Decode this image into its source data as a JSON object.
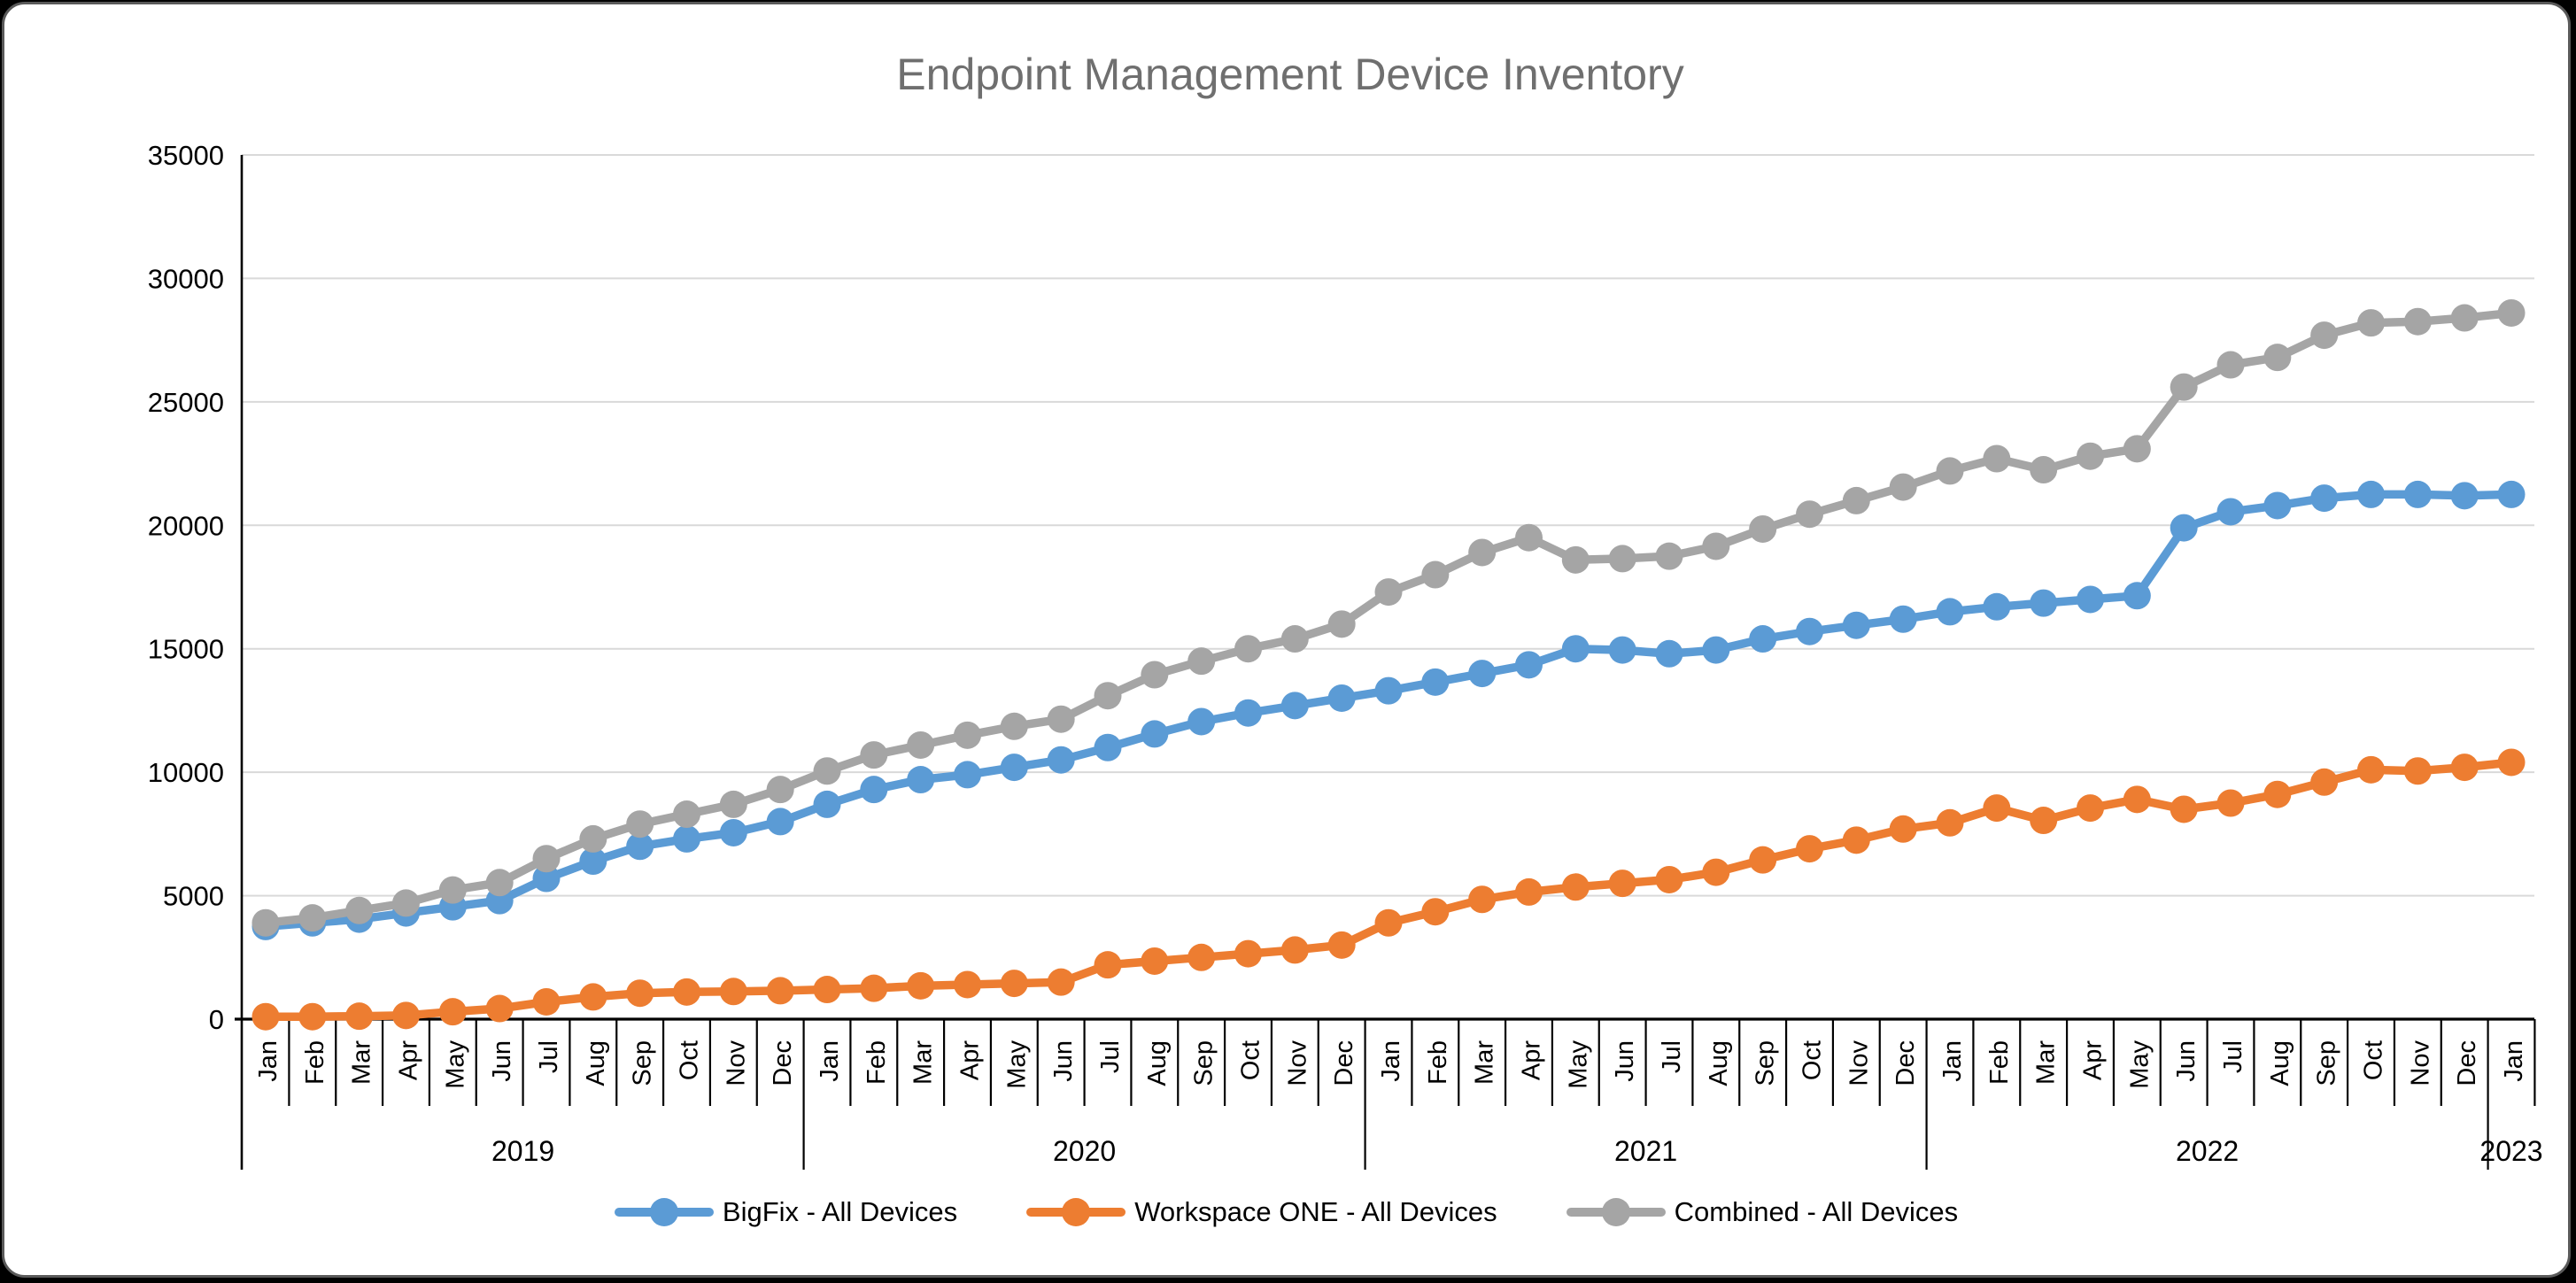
{
  "page": {
    "background": "#000000",
    "card_background": "#ffffff",
    "card_border": "#5a5a5a"
  },
  "chart": {
    "title_color": "#6F6F6F",
    "axis_color": "#000000",
    "grid_color": "#D9D9D9",
    "label_color": "#000000"
  },
  "chart_data": {
    "type": "line",
    "title": "Endpoint Management Device Inventory",
    "xlabel": "",
    "ylabel": "",
    "ylim": [
      0,
      35000
    ],
    "grid": true,
    "legend_position": "bottom",
    "y_ticks": [
      0,
      5000,
      10000,
      15000,
      20000,
      25000,
      30000,
      35000
    ],
    "categories": [
      "Jan",
      "Feb",
      "Mar",
      "Apr",
      "May",
      "Jun",
      "Jul",
      "Aug",
      "Sep",
      "Oct",
      "Nov",
      "Dec",
      "Jan",
      "Feb",
      "Mar",
      "Apr",
      "May",
      "Jun",
      "Jul",
      "Aug",
      "Sep",
      "Oct",
      "Nov",
      "Dec",
      "Jan",
      "Feb",
      "Mar",
      "Apr",
      "May",
      "Jun",
      "Jul",
      "Aug",
      "Sep",
      "Oct",
      "Nov",
      "Dec",
      "Jan",
      "Feb",
      "Mar",
      "Apr",
      "May",
      "Jun",
      "Jul",
      "Aug",
      "Sep",
      "Oct",
      "Nov",
      "Dec",
      "Jan"
    ],
    "year_groups": [
      {
        "label": "2019",
        "span": 12
      },
      {
        "label": "2020",
        "span": 12
      },
      {
        "label": "2021",
        "span": 12
      },
      {
        "label": "2022",
        "span": 12
      },
      {
        "label": "2023",
        "span": 1
      }
    ],
    "series": [
      {
        "id": "bigfix",
        "name": "BigFix - All Devices",
        "color": "#5B9BD5",
        "values": [
          3750,
          3900,
          4050,
          4300,
          4550,
          4800,
          5700,
          6400,
          7000,
          7300,
          7550,
          8000,
          8700,
          9300,
          9700,
          9900,
          10200,
          10500,
          11000,
          11550,
          12050,
          12400,
          12700,
          13000,
          13300,
          13650,
          14000,
          14350,
          15000,
          14950,
          14800,
          14950,
          15400,
          15700,
          15950,
          16200,
          16500,
          16700,
          16850,
          17000,
          17150,
          19900,
          20550,
          20800,
          21100,
          21250,
          21250,
          21200,
          21250
        ]
      },
      {
        "id": "workspace-one",
        "name": "Workspace ONE - All Devices",
        "color": "#ED7D31",
        "values": [
          100,
          100,
          120,
          150,
          300,
          430,
          700,
          900,
          1050,
          1100,
          1120,
          1150,
          1200,
          1250,
          1350,
          1400,
          1450,
          1500,
          2200,
          2350,
          2500,
          2650,
          2800,
          3000,
          3900,
          4350,
          4850,
          5150,
          5350,
          5500,
          5650,
          5950,
          6450,
          6900,
          7250,
          7700,
          7950,
          8550,
          8050,
          8550,
          8900,
          8500,
          8750,
          9100,
          9600,
          10100,
          10050,
          10200,
          10400
        ]
      },
      {
        "id": "combined",
        "name": "Combined - All Devices",
        "color": "#A5A5A5",
        "values": [
          3900,
          4100,
          4400,
          4700,
          5230,
          5530,
          6500,
          7300,
          7900,
          8300,
          8700,
          9300,
          10050,
          10700,
          11100,
          11500,
          11860,
          12150,
          13100,
          13950,
          14500,
          15000,
          15400,
          16000,
          17300,
          18000,
          18900,
          19500,
          18600,
          18650,
          18750,
          19150,
          19850,
          20450,
          21000,
          21550,
          22200,
          22700,
          22250,
          22800,
          23100,
          25600,
          26500,
          26800,
          27700,
          28200,
          28250,
          28400,
          28600
        ]
      }
    ]
  }
}
